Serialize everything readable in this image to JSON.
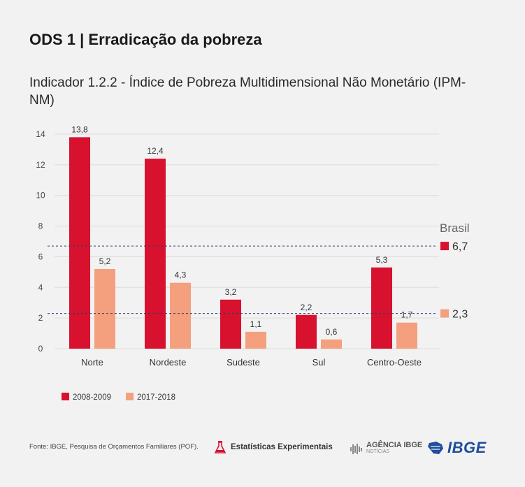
{
  "header": {
    "title": "ODS 1 | Erradicação da pobreza",
    "subtitle": "Indicador 1.2.2 - Índice de Pobreza Multidimensional Não Monetário (IPM-NM)"
  },
  "chart_data": {
    "type": "bar",
    "title": "",
    "xlabel": "",
    "ylabel": "",
    "categories": [
      "Norte",
      "Nordeste",
      "Sudeste",
      "Sul",
      "Centro-Oeste"
    ],
    "series": [
      {
        "name": "2008-2009",
        "values": [
          13.8,
          12.4,
          3.2,
          2.2,
          5.3
        ],
        "labels": [
          "13,8",
          "12,4",
          "3,2",
          "2,2",
          "5,3"
        ],
        "color": "#d8112e"
      },
      {
        "name": "2017-2018",
        "values": [
          5.2,
          4.3,
          1.1,
          0.6,
          1.7
        ],
        "labels": [
          "5,2",
          "4,3",
          "1,1",
          "0,6",
          "1,7"
        ],
        "color": "#f4a07e"
      }
    ],
    "ylim": [
      0,
      14
    ],
    "yticks": [
      0,
      2,
      4,
      6,
      8,
      10,
      12,
      14
    ],
    "grid": true,
    "legend": "bottom-left",
    "reference": {
      "title": "Brasil",
      "lines": [
        {
          "value": 6.7,
          "label": "6,7",
          "color": "#d8112e"
        },
        {
          "value": 2.3,
          "label": "2,3",
          "color": "#f4a07e"
        }
      ]
    }
  },
  "footer": {
    "source": "Fonte: IBGE, Pesquisa de Orçamentos Familiares (POF).",
    "logo_stats": "Estatísticas Experimentais",
    "logo_agencia": "AGÊNCIA IBGE",
    "logo_agencia_sub": "NOTÍCIAS",
    "logo_ibge": "IBGE"
  }
}
